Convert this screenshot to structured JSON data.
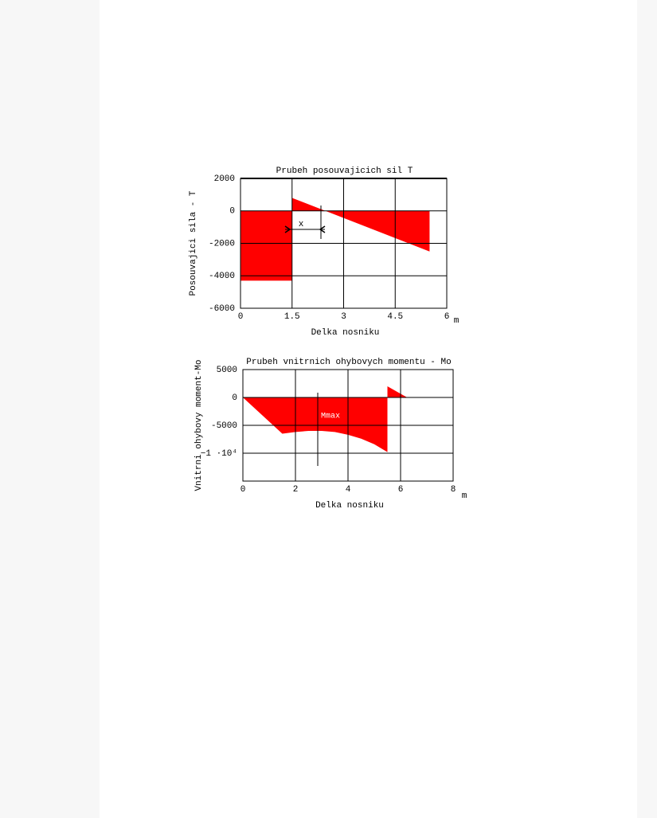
{
  "chart_data": [
    {
      "type": "area",
      "title": "Prubeh posouvajicich sil T",
      "xlabel": "Delka nosniku",
      "xunit": "m",
      "ylabel": "Posouvajici sila - T",
      "annotation": "x",
      "color": "#ff0000",
      "x": [
        0,
        0,
        1.5,
        1.5,
        5.5,
        5.5
      ],
      "values": [
        0,
        -4300,
        -4300,
        800,
        -2500,
        0
      ],
      "xlim": [
        0,
        6
      ],
      "xticks": [
        0,
        1.5,
        3,
        4.5,
        6
      ],
      "ylim": [
        -6000,
        2000
      ],
      "yticks": [
        2000,
        0,
        -2000,
        -4000,
        -6000
      ],
      "grid": true
    },
    {
      "type": "area",
      "title": "Prubeh vnitrnich ohybovych momentu - Mo",
      "xlabel": "Delka nosniku",
      "xunit": "m",
      "ylabel": "Vnitrni ohybovy moment-Mo",
      "annotation": "Mmax",
      "color": "#ff0000",
      "x": [
        0,
        1.5,
        2,
        2.5,
        3,
        3.5,
        4,
        4.5,
        5,
        5.5,
        5.5,
        6.25
      ],
      "values": [
        0,
        -6500,
        -6200,
        -6000,
        -6000,
        -6200,
        -6700,
        -7400,
        -8400,
        -9800,
        2000,
        0
      ],
      "xlim": [
        0,
        8
      ],
      "xticks": [
        0,
        2,
        4,
        6,
        8
      ],
      "ylim": [
        -15000,
        5000
      ],
      "yticks": [
        5000,
        0,
        -5000,
        {
          "value": -10000,
          "label": "−1 ·10⁴"
        }
      ],
      "grid": true
    }
  ]
}
